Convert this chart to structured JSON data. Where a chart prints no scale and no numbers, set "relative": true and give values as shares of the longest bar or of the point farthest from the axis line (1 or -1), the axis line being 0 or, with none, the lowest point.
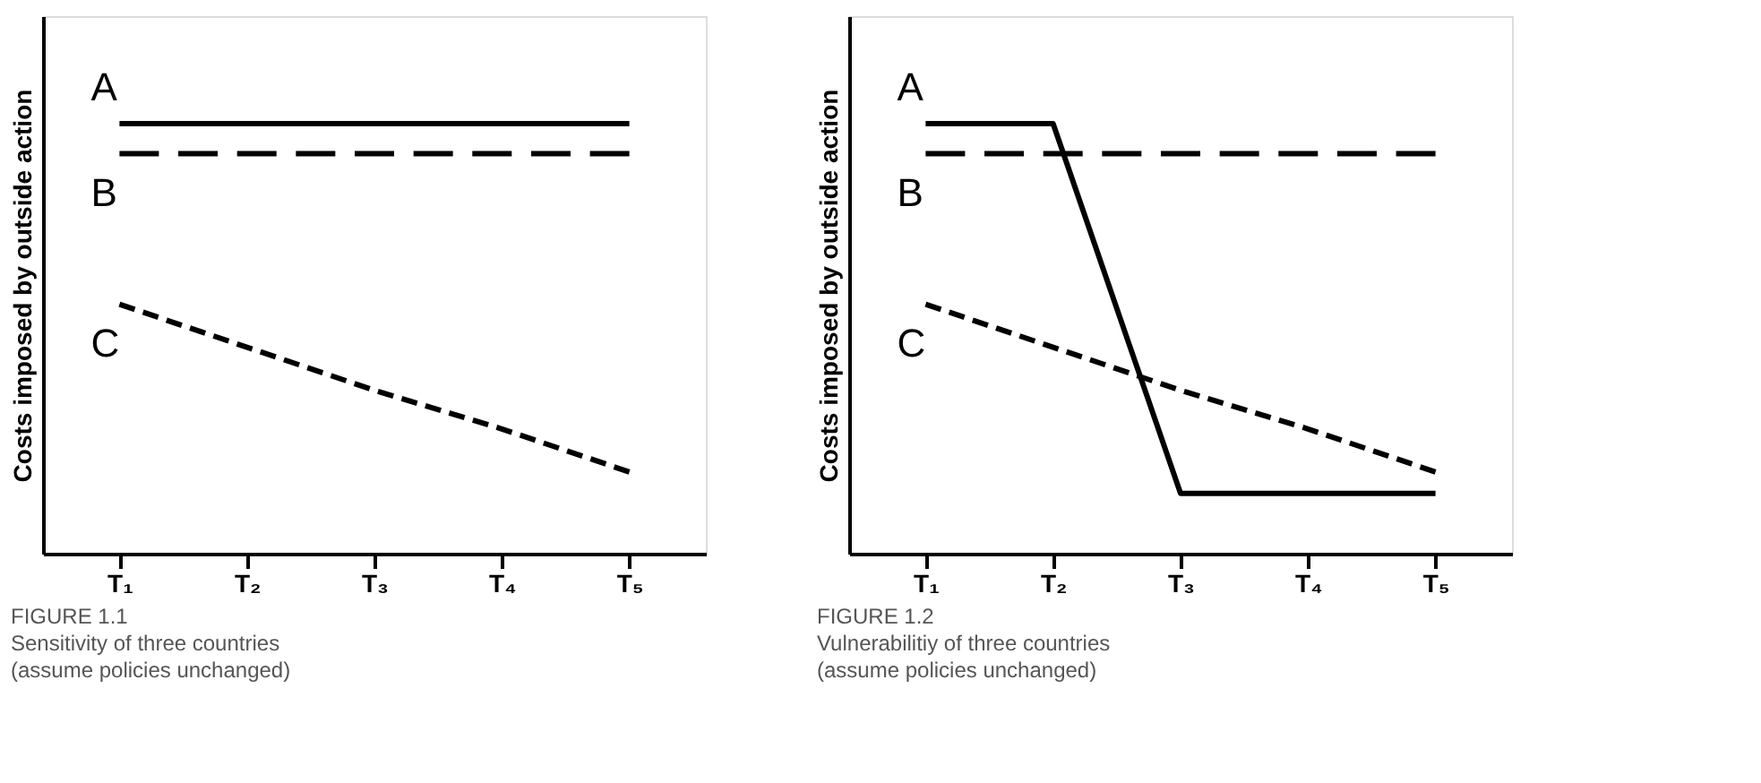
{
  "chart_data": [
    {
      "type": "line",
      "relative": true,
      "ylabel": "Costs imposed by outside action",
      "categories": [
        "T₁",
        "T₂",
        "T₃",
        "T₄",
        "T₅"
      ],
      "annotations": [
        "FIGURE 1.1",
        "Sensitivity of three countries",
        "(assume policies unchanged)"
      ],
      "marker": "none",
      "series": [
        {
          "name": "A",
          "color": "#000000",
          "line_style": "solid",
          "values": [
            1,
            1,
            1,
            1,
            1
          ]
        },
        {
          "name": "B",
          "color": "#000000",
          "line_style": "dashed",
          "values": [
            0.93,
            0.93,
            0.93,
            0.93,
            0.93
          ]
        },
        {
          "name": "C",
          "color": "#000000",
          "line_style": "dotted",
          "values": [
            0.58,
            0.48,
            0.38,
            0.29,
            0.19
          ]
        }
      ]
    },
    {
      "type": "line",
      "relative": true,
      "ylabel": "Costs imposed by outside action",
      "categories": [
        "T₁",
        "T₂",
        "T₃",
        "T₄",
        "T₅"
      ],
      "annotations": [
        "FIGURE 1.2",
        "Vulnerabilitiy of three countries",
        "(assume policies unchanged)"
      ],
      "marker": "none",
      "series": [
        {
          "name": "A",
          "color": "#000000",
          "line_style": "solid",
          "values": [
            1,
            1,
            0.14,
            0.14,
            0.14
          ]
        },
        {
          "name": "B",
          "color": "#000000",
          "line_style": "dashed",
          "values": [
            0.93,
            0.93,
            0.93,
            0.93,
            0.93
          ]
        },
        {
          "name": "C",
          "color": "#000000",
          "line_style": "dotted",
          "values": [
            0.58,
            0.48,
            0.38,
            0.29,
            0.19
          ]
        }
      ]
    }
  ]
}
